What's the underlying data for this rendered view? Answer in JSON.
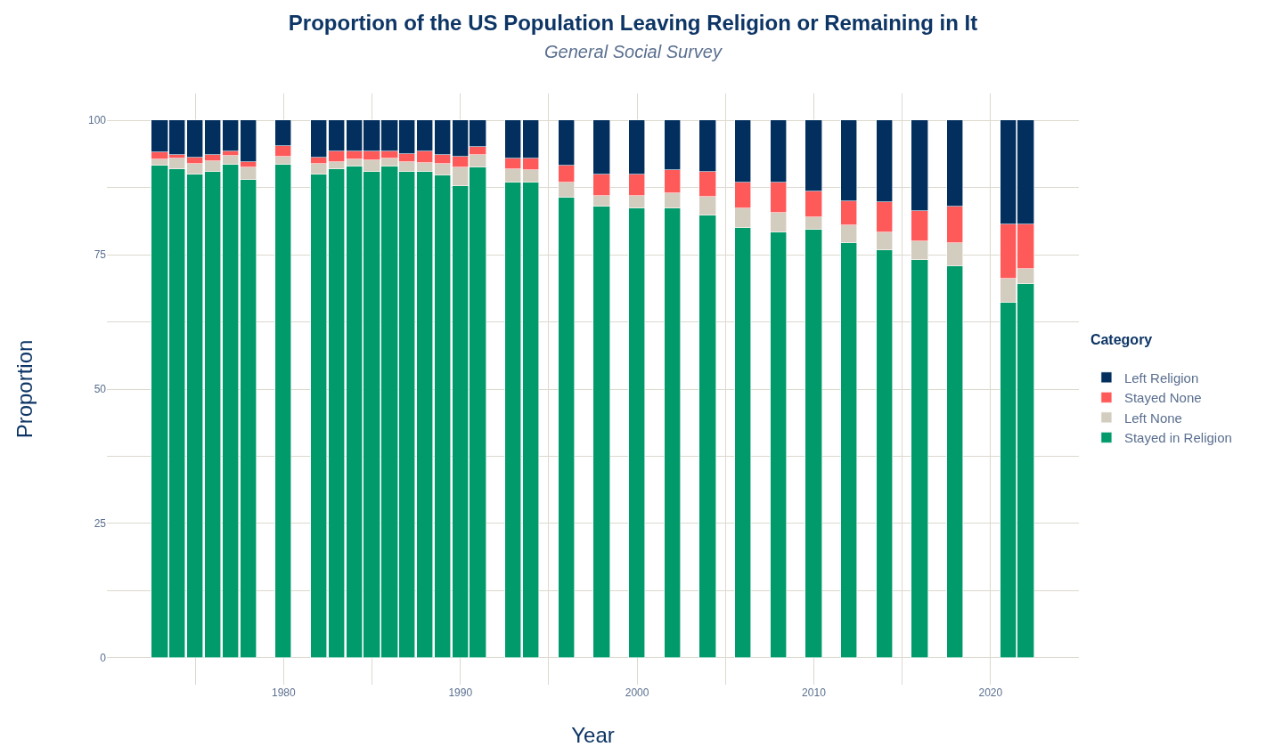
{
  "chart_data": {
    "type": "bar",
    "title": "Proportion of the US Population Leaving Religion or Remaining in It",
    "subtitle": "General Social Survey",
    "xlabel": "Year",
    "ylabel": "Proportion",
    "legend_title": "Category",
    "stacked": true,
    "grid": true,
    "legend": "right",
    "x": [
      1973,
      1974,
      1975,
      1976,
      1977,
      1978,
      1980,
      1982,
      1983,
      1984,
      1985,
      1986,
      1987,
      1988,
      1989,
      1990,
      1991,
      1993,
      1994,
      1996,
      1998,
      2000,
      2002,
      2004,
      2006,
      2008,
      2010,
      2012,
      2014,
      2016,
      2018,
      2021,
      2022
    ],
    "xlim": [
      1970,
      2025
    ],
    "xticks": [
      {
        "value": 1975,
        "label": null
      },
      1980,
      {
        "value": 1985,
        "label": null
      },
      1990,
      {
        "value": 1995,
        "label": null
      },
      2000,
      {
        "value": 2005,
        "label": null
      },
      2010,
      {
        "value": 2015,
        "label": null
      },
      2020
    ],
    "ylim": [
      -5,
      105
    ],
    "yticks": [
      0,
      {
        "value": 12.5,
        "label": null
      },
      25,
      {
        "value": 37.5,
        "label": null
      },
      50,
      {
        "value": 62.5,
        "label": null
      },
      75,
      {
        "value": 87.5,
        "label": null
      },
      100
    ],
    "series": [
      {
        "name": "Stayed in Religion",
        "color": "#009a6b",
        "values": [
          91.6,
          90.9,
          90.0,
          90.4,
          91.7,
          89.0,
          91.8,
          89.9,
          90.9,
          91.4,
          90.4,
          91.4,
          90.4,
          90.4,
          89.7,
          87.7,
          91.2,
          88.4,
          88.5,
          85.7,
          84.0,
          83.6,
          83.6,
          82.3,
          80.0,
          79.2,
          79.7,
          77.2,
          75.9,
          74.1,
          72.8,
          66.0,
          69.5
        ]
      },
      {
        "name": "Left None",
        "color": "#d3cdbf",
        "values": [
          1.1,
          2.0,
          1.9,
          2.0,
          1.7,
          2.2,
          1.4,
          2.0,
          1.4,
          1.4,
          2.2,
          1.5,
          1.9,
          1.6,
          2.2,
          3.6,
          2.3,
          2.5,
          2.2,
          2.8,
          2.0,
          2.4,
          2.8,
          3.5,
          3.6,
          3.6,
          2.2,
          3.3,
          3.2,
          3.4,
          4.3,
          4.6,
          2.9
        ]
      },
      {
        "name": "Stayed None",
        "color": "#ff5a5a",
        "values": [
          1.3,
          0.7,
          1.1,
          1.2,
          0.8,
          1.1,
          2.0,
          1.2,
          1.9,
          1.4,
          1.6,
          1.3,
          1.5,
          2.2,
          1.6,
          2.0,
          1.5,
          2.0,
          2.2,
          3.0,
          4.0,
          4.0,
          4.3,
          4.6,
          4.9,
          5.6,
          4.8,
          4.5,
          5.7,
          5.7,
          6.9,
          10.0,
          8.2
        ]
      },
      {
        "name": "Left Religion",
        "color": "#022f5e",
        "values": [
          6.0,
          6.4,
          7.0,
          6.4,
          5.8,
          7.7,
          4.8,
          6.9,
          5.8,
          5.8,
          5.8,
          5.8,
          6.2,
          5.8,
          6.5,
          6.7,
          5.0,
          7.1,
          7.1,
          8.5,
          10.0,
          10.0,
          9.3,
          9.6,
          11.5,
          11.6,
          13.3,
          15.0,
          15.2,
          16.8,
          16.0,
          19.4,
          19.4
        ]
      }
    ]
  }
}
